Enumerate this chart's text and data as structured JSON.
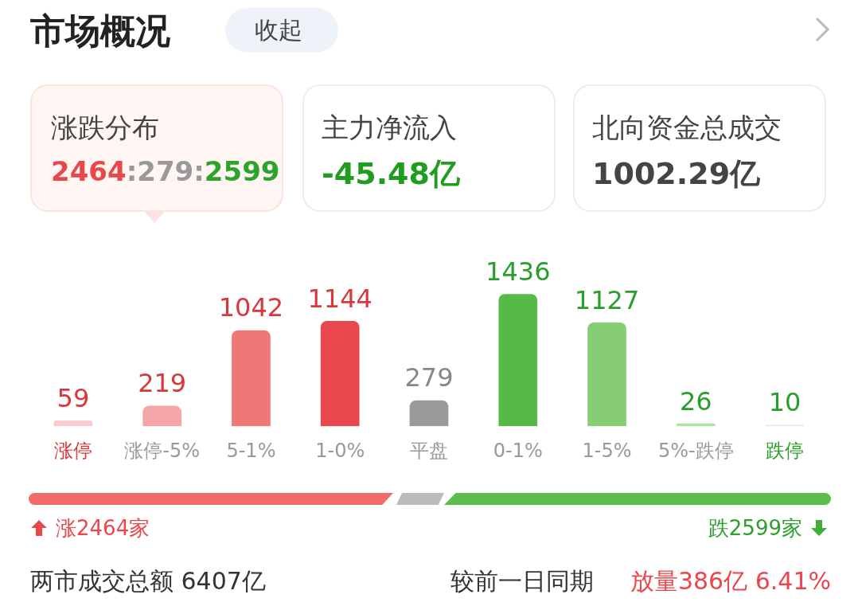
{
  "chart_data": {
    "type": "bar",
    "title": "市场概况",
    "categories": [
      "涨停",
      "涨停-5%",
      "5-1%",
      "1-0%",
      "平盘",
      "0-1%",
      "1-5%",
      "5%-跌停",
      "跌停"
    ],
    "values": [
      59,
      219,
      1042,
      1144,
      279,
      1436,
      1127,
      26,
      10
    ],
    "colors": [
      "#f9cdd0",
      "#f5a5a8",
      "#ef7775",
      "#e9474c",
      "#9a9a9a",
      "#57b948",
      "#87cd74",
      "#b2e0a6",
      "#d3eecc"
    ],
    "data_labels": true,
    "grid": false,
    "legend": false,
    "annotations": [
      "收起",
      "涨跌分布",
      "2464:279:2599",
      "主力净流入",
      "-45.48亿",
      "北向资金总成交",
      "1002.29亿",
      "涨2464家",
      "跌2599家",
      "两市成交总额  6407亿",
      "较前一日同期",
      "放量386亿  6.41%"
    ]
  }
}
